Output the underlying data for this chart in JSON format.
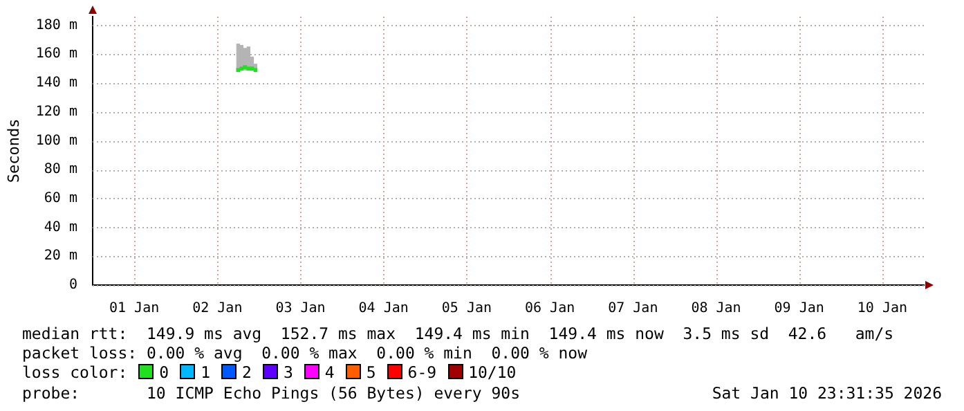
{
  "chart_data": {
    "type": "scatter",
    "ylabel": "Seconds",
    "x": [
      "2026-01-02T18:00",
      "2026-01-02T19:00",
      "2026-01-02T20:00",
      "2026-01-02T21:00",
      "2026-01-02T22:00",
      "2026-01-02T23:00"
    ],
    "series": [
      {
        "type": "bar",
        "color": "#b4b4b4",
        "base": [
          149,
          149,
          149,
          149,
          149,
          149
        ],
        "values": [
          18,
          17,
          15,
          16,
          9,
          4
        ]
      },
      {
        "name": "0",
        "color": "#20e020",
        "values": [
          149,
          150,
          151,
          150,
          150,
          149
        ]
      },
      {
        "type": "scatter",
        "name": "1",
        "color": "#00b8ff",
        "values": [
          null,
          null,
          null,
          null,
          null,
          null
        ]
      },
      {
        "type": "scatter",
        "name": "2",
        "color": "#0059ff",
        "values": [
          null,
          null,
          null,
          null,
          null,
          null
        ]
      },
      {
        "type": "scatter",
        "name": "3",
        "color": "#5e00ff",
        "values": [
          null,
          null,
          null,
          null,
          null,
          null
        ]
      },
      {
        "type": "scatter",
        "name": "4",
        "color": "#ff00fe",
        "values": [
          null,
          null,
          null,
          null,
          null,
          null
        ]
      },
      {
        "type": "scatter",
        "name": "5",
        "color": "#ff5e00",
        "values": [
          null,
          null,
          null,
          null,
          null,
          null
        ]
      },
      {
        "type": "scatter",
        "name": "6-9",
        "color": "#ff0000",
        "values": [
          null,
          null,
          null,
          null,
          null,
          null
        ]
      },
      {
        "type": "scatter",
        "name": "10/10",
        "color": "#a00000",
        "values": [
          null,
          null,
          null,
          null,
          null,
          null
        ]
      }
    ],
    "marker": "square",
    "legend": "bottom",
    "legend_title": "loss color:",
    "grid": true,
    "xlim": [
      "2026-01-01T00:00",
      "2026-01-11T00:00"
    ],
    "xticks": [
      {
        "value": "2026-01-01T12:00",
        "label": "01 Jan"
      },
      {
        "value": "2026-01-02T12:00",
        "label": "02 Jan"
      },
      {
        "value": "2026-01-03T12:00",
        "label": "03 Jan"
      },
      {
        "value": "2026-01-04T12:00",
        "label": "04 Jan"
      },
      {
        "value": "2026-01-05T12:00",
        "label": "05 Jan"
      },
      {
        "value": "2026-01-06T12:00",
        "label": "06 Jan"
      },
      {
        "value": "2026-01-07T12:00",
        "label": "07 Jan"
      },
      {
        "value": "2026-01-08T12:00",
        "label": "08 Jan"
      },
      {
        "value": "2026-01-09T12:00",
        "label": "09 Jan"
      },
      {
        "value": "2026-01-10T12:00",
        "label": "10 Jan"
      }
    ],
    "ylim": [
      0,
      186
    ],
    "yticks": [
      0,
      {
        "value": 20,
        "label": "20 m"
      },
      {
        "value": 40,
        "label": "40 m"
      },
      {
        "value": 60,
        "label": "60 m"
      },
      {
        "value": 80,
        "label": "80 m"
      },
      {
        "value": 100,
        "label": "100 m"
      },
      {
        "value": 120,
        "label": "120 m"
      },
      {
        "value": 140,
        "label": "140 m"
      },
      {
        "value": 160,
        "label": "160 m"
      },
      {
        "value": 180,
        "label": "180 m"
      }
    ],
    "annotations": [
      "median rtt:  149.9 ms avg  152.7 ms max  149.4 ms min  149.4 ms now  3.5 ms sd  42.6   am/s",
      "packet loss: 0.00 % avg  0.00 % max  0.00 % min  0.00 % now",
      "probe:       10 ICMP Echo Pings (56 Bytes) every 90s",
      "Sat Jan 10 23:31:35 2026"
    ]
  }
}
